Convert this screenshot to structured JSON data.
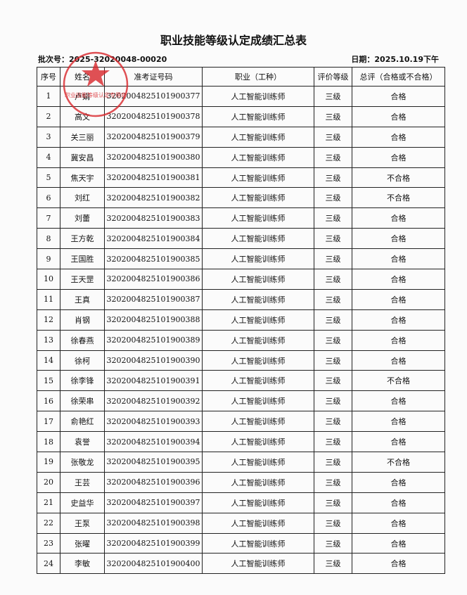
{
  "header": {
    "title": "职业技能等级认定成绩汇总表",
    "batch": "批次号：2025-32020048-00020",
    "date": "日期：2025.10.19下午"
  },
  "stamp": {
    "text": "职业技能等级认定专用章"
  },
  "table": {
    "columns": [
      "序号",
      "姓名",
      "准考证号码",
      "职业（工种）",
      "评价等级",
      "总评（合格或不合格）"
    ],
    "rows": [
      [
        "1",
        "卢娟",
        "3202004825101900377",
        "人工智能训练师",
        "三级",
        "合格"
      ],
      [
        "2",
        "高文",
        "3202004825101900378",
        "人工智能训练师",
        "三级",
        "合格"
      ],
      [
        "3",
        "关三丽",
        "3202004825101900379",
        "人工智能训练师",
        "三级",
        "合格"
      ],
      [
        "4",
        "冀安昌",
        "3202004825101900380",
        "人工智能训练师",
        "三级",
        "合格"
      ],
      [
        "5",
        "焦天宇",
        "3202004825101900381",
        "人工智能训练师",
        "三级",
        "不合格"
      ],
      [
        "6",
        "刘红",
        "3202004825101900382",
        "人工智能训练师",
        "三级",
        "不合格"
      ],
      [
        "7",
        "刘蕾",
        "3202004825101900383",
        "人工智能训练师",
        "三级",
        "合格"
      ],
      [
        "8",
        "王方乾",
        "3202004825101900384",
        "人工智能训练师",
        "三级",
        "合格"
      ],
      [
        "9",
        "王国胜",
        "3202004825101900385",
        "人工智能训练师",
        "三级",
        "合格"
      ],
      [
        "10",
        "王天罡",
        "3202004825101900386",
        "人工智能训练师",
        "三级",
        "合格"
      ],
      [
        "11",
        "王真",
        "3202004825101900387",
        "人工智能训练师",
        "三级",
        "合格"
      ],
      [
        "12",
        "肖钢",
        "3202004825101900388",
        "人工智能训练师",
        "三级",
        "合格"
      ],
      [
        "13",
        "徐春燕",
        "3202004825101900389",
        "人工智能训练师",
        "三级",
        "合格"
      ],
      [
        "14",
        "徐柯",
        "3202004825101900390",
        "人工智能训练师",
        "三级",
        "合格"
      ],
      [
        "15",
        "徐李锋",
        "3202004825101900391",
        "人工智能训练师",
        "三级",
        "不合格"
      ],
      [
        "16",
        "徐荣串",
        "3202004825101900392",
        "人工智能训练师",
        "三级",
        "合格"
      ],
      [
        "17",
        "俞艳红",
        "3202004825101900393",
        "人工智能训练师",
        "三级",
        "合格"
      ],
      [
        "18",
        "袁誉",
        "3202004825101900394",
        "人工智能训练师",
        "三级",
        "合格"
      ],
      [
        "19",
        "张敬龙",
        "3202004825101900395",
        "人工智能训练师",
        "三级",
        "不合格"
      ],
      [
        "20",
        "王芸",
        "3202004825101900396",
        "人工智能训练师",
        "三级",
        "合格"
      ],
      [
        "21",
        "史益华",
        "3202004825101900397",
        "人工智能训练师",
        "三级",
        "合格"
      ],
      [
        "22",
        "王泵",
        "3202004825101900398",
        "人工智能训练师",
        "三级",
        "合格"
      ],
      [
        "23",
        "张曜",
        "3202004825101900399",
        "人工智能训练师",
        "三级",
        "合格"
      ],
      [
        "24",
        "李敏",
        "3202004825101900400",
        "人工智能训练师",
        "三级",
        "合格"
      ]
    ]
  }
}
